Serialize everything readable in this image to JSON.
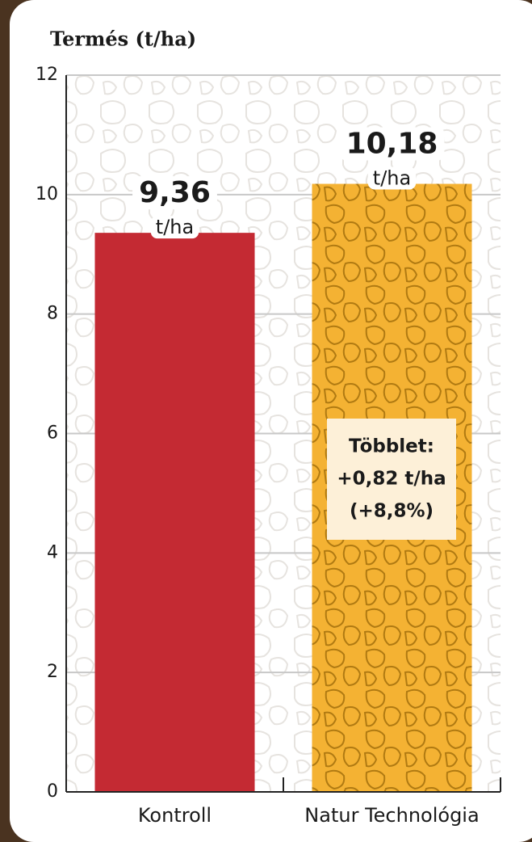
{
  "chart_data": {
    "type": "bar",
    "title": "Termés (t/ha)",
    "categories": [
      "Kontroll",
      "Natur Technológia"
    ],
    "values": [
      9.36,
      10.18
    ],
    "value_labels": [
      "9,36",
      "10,18"
    ],
    "unit": "t/ha",
    "colors": [
      "#c42a33",
      "#f4b233"
    ],
    "ylim": [
      0,
      12
    ],
    "yticks": [
      0,
      2,
      4,
      6,
      8,
      10,
      12
    ],
    "grid": true,
    "annotation": [
      "Többlet:",
      "+0,82 t/ha",
      "(+8,8%)"
    ]
  }
}
